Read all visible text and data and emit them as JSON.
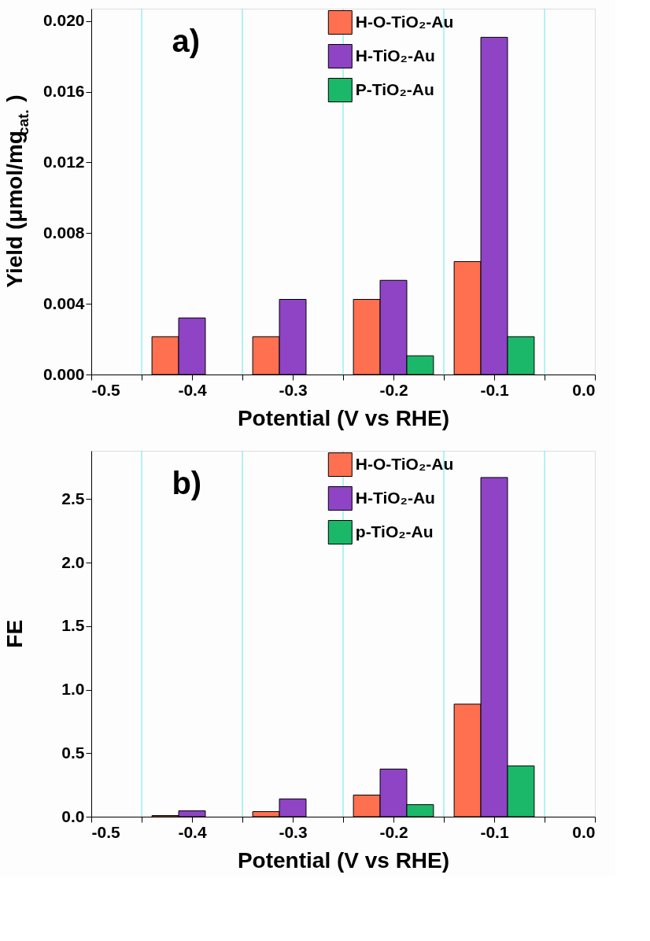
{
  "chart_data": [
    {
      "type": "bar",
      "xlabel": "Potential (V vs RHE)",
      "ylabel": "Yield (μmol/mg$_{cat.}$)",
      "annotations": [
        "a)"
      ],
      "x": [
        -0.4,
        -0.3,
        -0.2,
        -0.1
      ],
      "series": [
        {
          "name": "H-O-TiO₂-Au",
          "color": "#ff7050",
          "values": [
            0.00214,
            0.00214,
            0.00425,
            0.00639
          ]
        },
        {
          "name": "H-TiO₂-Au",
          "color": "#8e44c4",
          "values": [
            0.0032,
            0.00425,
            0.00533,
            0.01908
          ]
        },
        {
          "name": "P-TiO₂-Au",
          "color": "#1cb86a",
          "values": [
            null,
            null,
            0.00106,
            0.00214
          ]
        }
      ],
      "xlim": [
        -0.5,
        0.0
      ],
      "xticks": [
        -0.5,
        {
          "value": -0.45,
          "label": null
        },
        -0.4,
        {
          "value": -0.35,
          "label": null
        },
        -0.3,
        {
          "value": -0.25,
          "label": null
        },
        -0.2,
        {
          "value": -0.15,
          "label": null
        },
        -0.1,
        {
          "value": -0.05,
          "label": null
        },
        {
          "value": 0.0,
          "label": "0.0"
        }
      ],
      "ylim": [
        0,
        0.0207
      ],
      "yticks": [
        {
          "value": 0,
          "label": "0.000"
        },
        0.004,
        0.008,
        0.012,
        0.016,
        {
          "value": 0.02,
          "label": "0.020"
        }
      ],
      "ref_lines": [
        {
          "axis": "x",
          "value": -0.45,
          "color": "#66e8e8"
        },
        {
          "axis": "x",
          "value": -0.35,
          "color": "#66e8e8"
        },
        {
          "axis": "x",
          "value": -0.25,
          "color": "#66e8e8"
        },
        {
          "axis": "x",
          "value": -0.15,
          "color": "#66e8e8"
        },
        {
          "axis": "x",
          "value": -0.05,
          "color": "#66e8e8"
        }
      ],
      "legend": "top"
    },
    {
      "type": "bar",
      "xlabel": "Potential (V vs RHE)",
      "ylabel": "FE",
      "annotations": [
        "b)"
      ],
      "x": [
        -0.4,
        -0.3,
        -0.2,
        -0.1
      ],
      "series": [
        {
          "name": "H-O-TiO₂-Au",
          "color": "#ff7050",
          "values": [
            0.009,
            0.04,
            0.17,
            0.886
          ]
        },
        {
          "name": "H-TiO₂-Au",
          "color": "#8e44c4",
          "values": [
            0.046,
            0.14,
            0.375,
            2.67
          ]
        },
        {
          "name": "p-TiO₂-Au",
          "color": "#1cb86a",
          "values": [
            null,
            null,
            0.095,
            0.4
          ]
        }
      ],
      "xlim": [
        -0.5,
        0.0
      ],
      "xticks": [
        -0.5,
        {
          "value": -0.45,
          "label": null
        },
        -0.4,
        {
          "value": -0.35,
          "label": null
        },
        -0.3,
        {
          "value": -0.25,
          "label": null
        },
        -0.2,
        {
          "value": -0.15,
          "label": null
        },
        -0.1,
        {
          "value": -0.05,
          "label": null
        },
        {
          "value": 0.0,
          "label": "0.0"
        }
      ],
      "ylim": [
        0,
        2.88
      ],
      "yticks": [
        {
          "value": 0,
          "label": "0.0"
        },
        0.5,
        {
          "value": 1.0,
          "label": "1.0"
        },
        1.5,
        {
          "value": 2.0,
          "label": "2.0"
        },
        2.5
      ],
      "ref_lines": [
        {
          "axis": "x",
          "value": -0.45,
          "color": "#66e8e8"
        },
        {
          "axis": "x",
          "value": -0.35,
          "color": "#66e8e8"
        },
        {
          "axis": "x",
          "value": -0.25,
          "color": "#66e8e8"
        },
        {
          "axis": "x",
          "value": -0.15,
          "color": "#66e8e8"
        },
        {
          "axis": "x",
          "value": -0.05,
          "color": "#66e8e8"
        }
      ],
      "legend": "top"
    }
  ]
}
